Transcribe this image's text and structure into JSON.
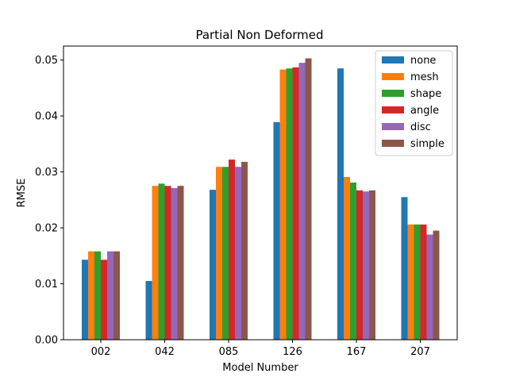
{
  "chart_data": {
    "type": "bar",
    "title": "Partial Non Deformed",
    "xlabel": "Model Number",
    "ylabel": "RMSE",
    "categories": [
      "002",
      "042",
      "085",
      "126",
      "167",
      "207"
    ],
    "ylim": [
      0,
      0.0525
    ],
    "yticks": [
      "0.00",
      "0.01",
      "0.02",
      "0.03",
      "0.04",
      "0.05"
    ],
    "ytick_values": [
      0,
      0.01,
      0.02,
      0.03,
      0.04,
      0.05
    ],
    "grid": false,
    "legend_position": "top-right",
    "series": [
      {
        "name": "none",
        "color": "#1f77b4",
        "values": [
          0.0143,
          0.0105,
          0.0268,
          0.0389,
          0.0485,
          0.0255
        ]
      },
      {
        "name": "mesh",
        "color": "#ff7f0e",
        "values": [
          0.0158,
          0.0275,
          0.0309,
          0.0483,
          0.0291,
          0.0206
        ]
      },
      {
        "name": "shape",
        "color": "#2ca02c",
        "values": [
          0.0158,
          0.0279,
          0.0309,
          0.0485,
          0.0281,
          0.0206
        ]
      },
      {
        "name": "angle",
        "color": "#d62728",
        "values": [
          0.0143,
          0.0275,
          0.0322,
          0.0487,
          0.0267,
          0.0206
        ]
      },
      {
        "name": "disc",
        "color": "#9467bd",
        "values": [
          0.0158,
          0.0271,
          0.0309,
          0.0495,
          0.0265,
          0.0188
        ]
      },
      {
        "name": "simple",
        "color": "#8c564b",
        "values": [
          0.0158,
          0.0275,
          0.0318,
          0.0503,
          0.0267,
          0.0195
        ]
      }
    ]
  }
}
